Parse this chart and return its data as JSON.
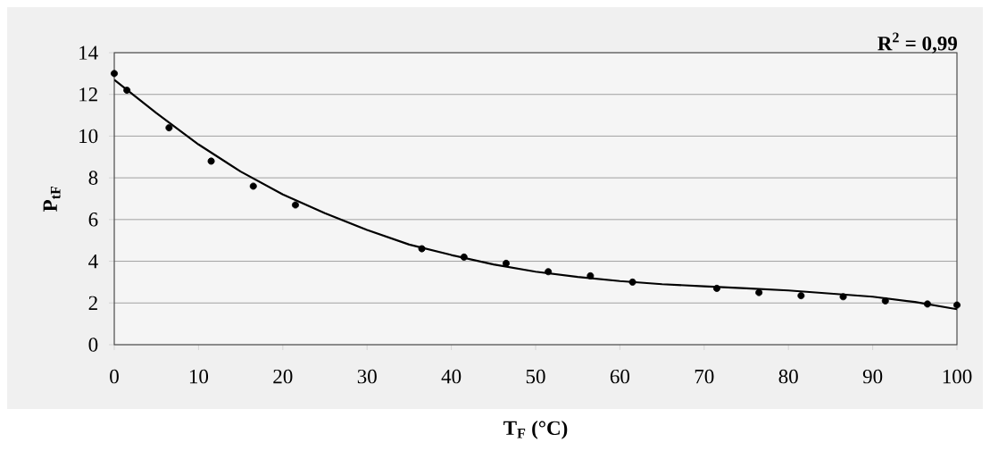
{
  "chart_data": {
    "type": "scatter",
    "xlabel": "T$_{F}$ (°C)",
    "ylabel": "P$_{tF}$",
    "annotations": [
      "R$^{2}$ = 0,99"
    ],
    "xlim": [
      0,
      100
    ],
    "ylim": [
      0,
      14
    ],
    "xticks": [
      0,
      10,
      20,
      30,
      40,
      50,
      60,
      70,
      80,
      90,
      100
    ],
    "yticks": [
      0,
      2,
      4,
      6,
      8,
      10,
      12,
      14
    ],
    "grid": "y",
    "series": [
      {
        "color": "#000000",
        "marker": "circle",
        "x": [
          0,
          1.5,
          6.5,
          11.5,
          16.5,
          21.5,
          36.5,
          41.5,
          46.5,
          51.5,
          56.5,
          61.5,
          71.5,
          76.5,
          81.5,
          86.5,
          91.5,
          96.5,
          100
        ],
        "values": [
          13.0,
          12.2,
          10.4,
          8.8,
          7.6,
          6.7,
          4.6,
          4.2,
          3.9,
          3.5,
          3.3,
          3.0,
          2.7,
          2.5,
          2.35,
          2.3,
          2.1,
          1.95,
          1.9
        ]
      },
      {
        "type": "line",
        "color": "#000000",
        "marker": "none",
        "line_style": "solid",
        "x": [
          0,
          5,
          10,
          15,
          20,
          25,
          30,
          35,
          40,
          45,
          50,
          55,
          60,
          65,
          70,
          75,
          80,
          85,
          90,
          95,
          100
        ],
        "values": [
          12.7,
          11.1,
          9.6,
          8.3,
          7.2,
          6.3,
          5.5,
          4.8,
          4.3,
          3.85,
          3.5,
          3.25,
          3.05,
          2.9,
          2.8,
          2.7,
          2.6,
          2.45,
          2.3,
          2.05,
          1.7
        ]
      }
    ]
  }
}
